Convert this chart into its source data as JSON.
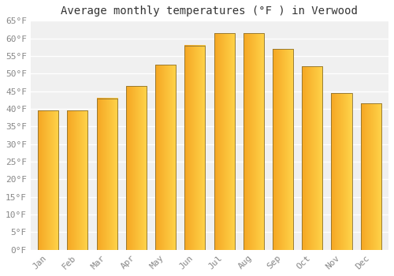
{
  "title": "Average monthly temperatures (°F ) in Verwood",
  "months": [
    "Jan",
    "Feb",
    "Mar",
    "Apr",
    "May",
    "Jun",
    "Jul",
    "Aug",
    "Sep",
    "Oct",
    "Nov",
    "Dec"
  ],
  "values": [
    39.5,
    39.5,
    43.0,
    46.5,
    52.5,
    58.0,
    61.5,
    61.5,
    57.0,
    52.0,
    44.5,
    41.5
  ],
  "bar_color_left": "#F5A623",
  "bar_color_right": "#FFD44A",
  "bar_edge_color": "#8B7030",
  "background_color": "#FFFFFF",
  "plot_bg_color": "#F0F0F0",
  "grid_color": "#FFFFFF",
  "ylim": [
    0,
    65
  ],
  "ytick_step": 5,
  "title_fontsize": 10,
  "tick_fontsize": 8,
  "font_family": "monospace"
}
